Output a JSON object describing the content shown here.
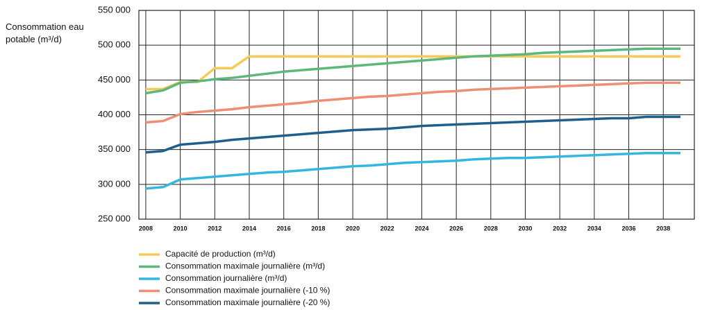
{
  "chart_data": {
    "type": "line",
    "y_label": "Consommation eau potable (m³/d)",
    "x": [
      2008,
      2009,
      2010,
      2011,
      2012,
      2013,
      2014,
      2015,
      2016,
      2017,
      2018,
      2019,
      2020,
      2021,
      2022,
      2023,
      2024,
      2025,
      2026,
      2027,
      2028,
      2029,
      2030,
      2031,
      2032,
      2033,
      2034,
      2035,
      2036,
      2037,
      2038,
      2039
    ],
    "xlim": [
      2007.6,
      2039.8
    ],
    "xticks": [
      2008,
      2010,
      2012,
      2014,
      2016,
      2018,
      2020,
      2022,
      2024,
      2026,
      2028,
      2030,
      2032,
      2034,
      2036,
      2038
    ],
    "ylim": [
      250000,
      550000
    ],
    "yticks": [
      {
        "value": 250000,
        "label": "250 000"
      },
      {
        "value": 300000,
        "label": "300 000"
      },
      {
        "value": 350000,
        "label": "350 000"
      },
      {
        "value": 400000,
        "label": "400 000"
      },
      {
        "value": 450000,
        "label": "450 000"
      },
      {
        "value": 500000,
        "label": "500 000"
      },
      {
        "value": 550000,
        "label": "550 000"
      }
    ],
    "grid": true,
    "legend": "bottom-left",
    "series": [
      {
        "name": "Capacité de production (m³/d)",
        "color": "#f5c95a",
        "values": [
          437000,
          437000,
          447000,
          447000,
          467000,
          467000,
          484000,
          484000,
          484000,
          484000,
          484000,
          484000,
          484000,
          484000,
          484000,
          484000,
          484000,
          484000,
          484000,
          484000,
          484000,
          484000,
          484000,
          484000,
          484000,
          484000,
          484000,
          484000,
          484000,
          484000,
          484000,
          484000
        ]
      },
      {
        "name": "Consommation maximale journalière (m³/d)",
        "color": "#5cb87a",
        "values": [
          431000,
          435000,
          446000,
          448000,
          451000,
          453000,
          456000,
          459000,
          462000,
          464000,
          466000,
          468000,
          470000,
          472000,
          474000,
          476000,
          478000,
          480000,
          482000,
          484000,
          485000,
          486000,
          487000,
          489000,
          490000,
          491000,
          492000,
          493000,
          494000,
          495000,
          495000,
          495000
        ]
      },
      {
        "name": "Consommation journalière (m³/d)",
        "color": "#35b6e0",
        "values": [
          294000,
          296000,
          307000,
          309000,
          311000,
          313000,
          315000,
          317000,
          318000,
          320000,
          322000,
          324000,
          326000,
          327000,
          329000,
          331000,
          332000,
          333000,
          334000,
          336000,
          337000,
          338000,
          338000,
          339000,
          340000,
          341000,
          342000,
          343000,
          344000,
          345000,
          345000,
          345000
        ]
      },
      {
        "name": "Consommation maximale journalière (-10 %)",
        "color": "#ec8f75",
        "values": [
          389000,
          391000,
          401000,
          404000,
          406000,
          408000,
          411000,
          413000,
          415000,
          417000,
          420000,
          422000,
          424000,
          426000,
          427000,
          429000,
          431000,
          433000,
          434000,
          436000,
          437000,
          438000,
          439000,
          440000,
          441000,
          442000,
          443000,
          444000,
          445000,
          446000,
          446000,
          446000
        ]
      },
      {
        "name": "Consommation maximale journalière (-20 %)",
        "color": "#1f5f8f",
        "values": [
          346000,
          348000,
          357000,
          359000,
          361000,
          364000,
          366000,
          368000,
          370000,
          372000,
          374000,
          376000,
          378000,
          379000,
          380000,
          382000,
          384000,
          385000,
          386000,
          387000,
          388000,
          389000,
          390000,
          391000,
          392000,
          393000,
          394000,
          395000,
          395000,
          397000,
          397000,
          397000
        ]
      }
    ]
  }
}
